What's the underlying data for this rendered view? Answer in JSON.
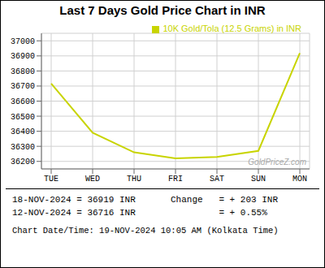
{
  "chart_data": {
    "type": "line",
    "title": "Last 7 Days Gold Price Chart in INR",
    "categories": [
      "TUE",
      "WED",
      "THU",
      "FRI",
      "SAT",
      "SUN",
      "MON"
    ],
    "series": [
      {
        "name": "10K Gold/Tola (12.5 Grams) in INR",
        "color": "#c8d400",
        "values": [
          36716,
          36390,
          36260,
          36220,
          36230,
          36270,
          36919
        ]
      }
    ],
    "ylim": [
      36150,
      37050
    ],
    "yticks": [
      36200,
      36300,
      36400,
      36500,
      36600,
      36700,
      36800,
      36900,
      37000
    ],
    "grid": true,
    "legend": "upper right",
    "annotations": [
      "GoldPriceZ.com",
      "18-NOV-2024 = 36919 INR",
      "12-NOV-2024 = 36716 INR",
      "Change   = + 203 INR",
      "= + 0.55%",
      "Chart Date/Time: 19-NOV-2024 10:05 AM (Kolkata Time)"
    ]
  }
}
